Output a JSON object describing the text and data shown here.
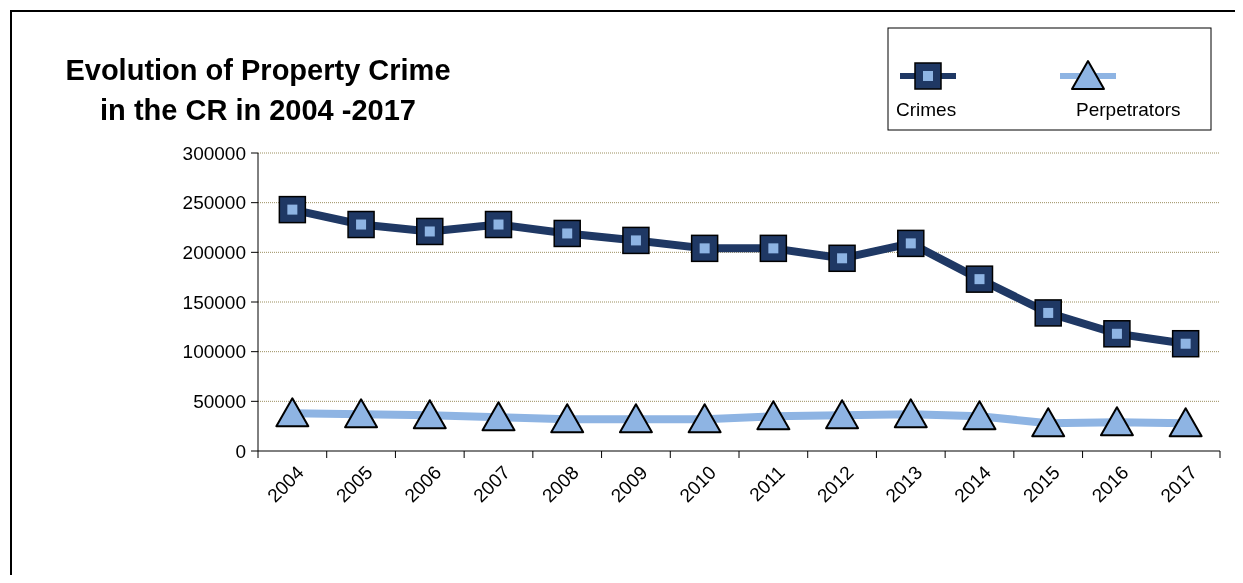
{
  "chart_data": {
    "type": "line",
    "title": "Evolution of Property Crime\nin the CR in 2004 -2017",
    "categories": [
      "2004",
      "2005",
      "2006",
      "2007",
      "2008",
      "2009",
      "2010",
      "2011",
      "2012",
      "2013",
      "2014",
      "2015",
      "2016",
      "2017"
    ],
    "series": [
      {
        "name": "Crimes",
        "color": "#1f3864",
        "marker": "square",
        "values": [
          243000,
          228000,
          221000,
          228000,
          219000,
          212000,
          204000,
          204000,
          194000,
          209000,
          173000,
          139000,
          118000,
          108000
        ]
      },
      {
        "name": "Perpetrators",
        "color": "#8eb4e3",
        "marker": "triangle",
        "values": [
          38000,
          37000,
          36000,
          34000,
          32000,
          32000,
          32000,
          35000,
          36000,
          37000,
          35000,
          28000,
          29000,
          28000
        ]
      }
    ],
    "ylim": [
      0,
      300000
    ],
    "yticks": [
      0,
      50000,
      100000,
      150000,
      200000,
      250000,
      300000
    ],
    "grid": "y",
    "legend": "top right"
  }
}
